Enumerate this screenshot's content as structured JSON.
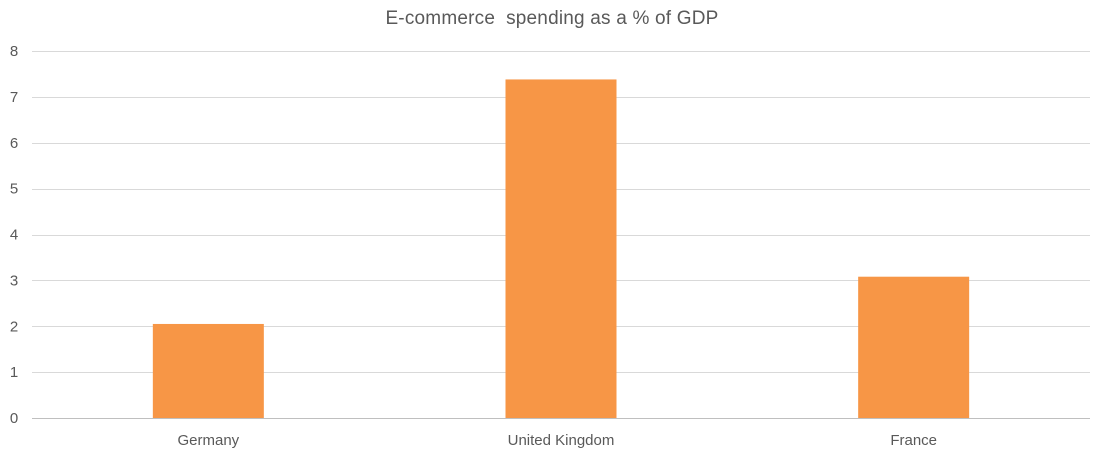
{
  "chart_data": {
    "type": "bar",
    "title": "E-commerce  spending as a % of GDP",
    "xlabel": "",
    "ylabel": "",
    "categories": [
      "Germany",
      "United Kingdom",
      "France"
    ],
    "series": [
      {
        "values": [
          2.05,
          7.38,
          3.08
        ]
      }
    ],
    "ylim": [
      0,
      8
    ],
    "yticks": [
      "0",
      "1",
      "2",
      "3",
      "4",
      "5",
      "6",
      "7",
      "8"
    ],
    "grid": true,
    "legend": "none"
  },
  "colors": {
    "bar": "#F79646",
    "grid": "#D9D9D9",
    "axis": "#BFBFBF",
    "text": "#595959"
  }
}
